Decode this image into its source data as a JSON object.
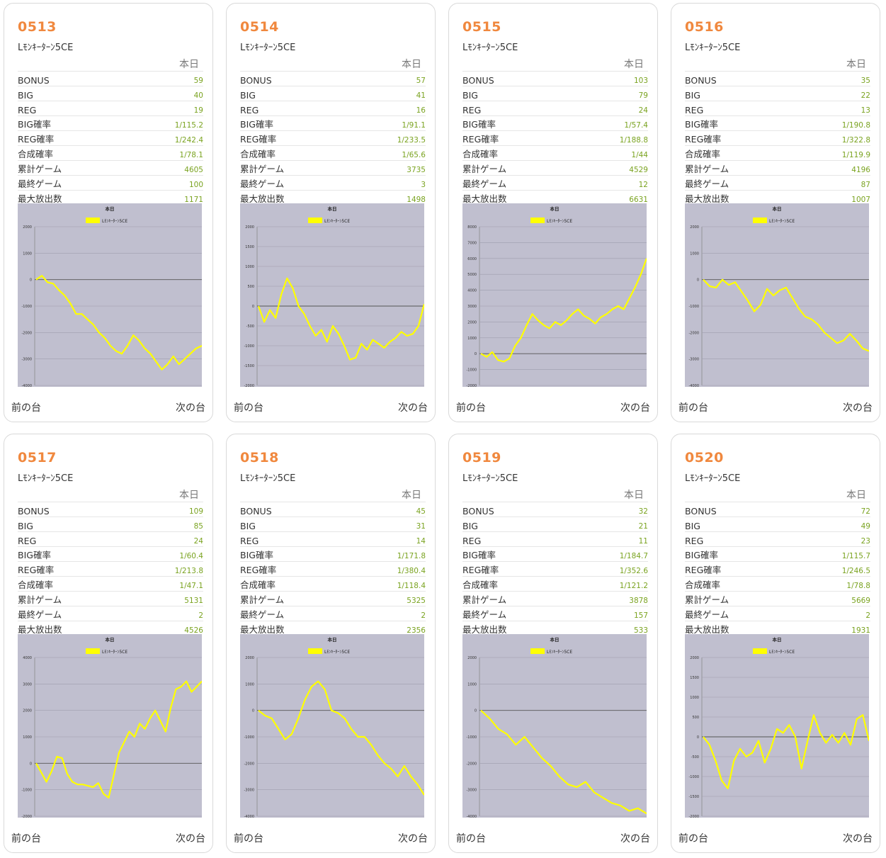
{
  "labels": {
    "today": "本日",
    "prev": "前の台",
    "next": "次の台",
    "rows": [
      "BONUS",
      "BIG",
      "REG",
      "BIG確率",
      "REG確率",
      "合成確率",
      "累計ゲーム",
      "最終ゲーム",
      "最大放出数"
    ]
  },
  "colors": {
    "accent": "#f0883e",
    "value": "#7aa320",
    "chart_bg": "#c0bfcf",
    "line": "#ffff00"
  },
  "machines": [
    {
      "id": "0513",
      "model": "Lﾓﾝｷｰﾀｰﾝ5CE",
      "stats": [
        "59",
        "40",
        "19",
        "1/115.2",
        "1/242.4",
        "1/78.1",
        "4605",
        "100",
        "1171"
      ],
      "chart_data": {
        "type": "line",
        "title": "本日",
        "legend": "Lﾓﾝｷｰﾀｰﾝ5CE",
        "ylim": [
          -4000,
          2000
        ],
        "yticks": [
          2000,
          1000,
          0,
          -1000,
          -2000,
          -3000,
          -4000
        ],
        "values": [
          0,
          150,
          -100,
          -150,
          -400,
          -600,
          -900,
          -1300,
          -1300,
          -1500,
          -1700,
          -2000,
          -2200,
          -2500,
          -2700,
          -2800,
          -2500,
          -2100,
          -2300,
          -2600,
          -2800,
          -3100,
          -3400,
          -3200,
          -2900,
          -3200,
          -3000,
          -2800,
          -2600,
          -2500
        ]
      }
    },
    {
      "id": "0514",
      "model": "Lﾓﾝｷｰﾀｰﾝ5CE",
      "stats": [
        "57",
        "41",
        "16",
        "1/91.1",
        "1/233.5",
        "1/65.6",
        "3735",
        "3",
        "1498"
      ],
      "chart_data": {
        "type": "line",
        "title": "本日",
        "legend": "Lﾓﾝｷｰﾀｰﾝ5CE",
        "ylim": [
          -2000,
          2000
        ],
        "yticks": [
          2000,
          1500,
          1000,
          500,
          0,
          -500,
          -1000,
          -1500,
          -2000
        ],
        "values": [
          0,
          -400,
          -100,
          -300,
          300,
          700,
          450,
          0,
          -200,
          -500,
          -750,
          -600,
          -900,
          -500,
          -700,
          -1000,
          -1350,
          -1300,
          -950,
          -1100,
          -850,
          -950,
          -1050,
          -900,
          -800,
          -650,
          -750,
          -700,
          -500,
          50
        ]
      }
    },
    {
      "id": "0515",
      "model": "Lﾓﾝｷｰﾀｰﾝ5CE",
      "stats": [
        "103",
        "79",
        "24",
        "1/57.4",
        "1/188.8",
        "1/44",
        "4529",
        "12",
        "6631"
      ],
      "chart_data": {
        "type": "line",
        "title": "本日",
        "legend": "Lﾓﾝｷｰﾀｰﾝ5CE",
        "ylim": [
          -2000,
          8000
        ],
        "yticks": [
          8000,
          7000,
          6000,
          5000,
          4000,
          3000,
          2000,
          1000,
          0,
          -1000,
          -2000
        ],
        "values": [
          0,
          -200,
          100,
          -400,
          -500,
          -300,
          500,
          1000,
          1800,
          2500,
          2100,
          1800,
          1600,
          2000,
          1800,
          2100,
          2500,
          2800,
          2400,
          2200,
          1900,
          2300,
          2500,
          2800,
          3000,
          2800,
          3500,
          4200,
          5000,
          6000
        ]
      }
    },
    {
      "id": "0516",
      "model": "Lﾓﾝｷｰﾀｰﾝ5CE",
      "stats": [
        "35",
        "22",
        "13",
        "1/190.8",
        "1/322.8",
        "1/119.9",
        "4196",
        "87",
        "1007"
      ],
      "chart_data": {
        "type": "line",
        "title": "本日",
        "legend": "Lﾓﾝｷｰﾀｰﾝ5CE",
        "ylim": [
          -4000,
          2000
        ],
        "yticks": [
          2000,
          1000,
          0,
          -1000,
          -2000,
          -3000,
          -4000
        ],
        "values": [
          0,
          -250,
          -300,
          0,
          -200,
          -100,
          -450,
          -800,
          -1200,
          -950,
          -350,
          -600,
          -400,
          -300,
          -700,
          -1100,
          -1400,
          -1500,
          -1700,
          -2000,
          -2200,
          -2400,
          -2300,
          -2050,
          -2300,
          -2600,
          -2700
        ]
      }
    },
    {
      "id": "0517",
      "model": "Lﾓﾝｷｰﾀｰﾝ5CE",
      "stats": [
        "109",
        "85",
        "24",
        "1/60.4",
        "1/213.8",
        "1/47.1",
        "5131",
        "2",
        "4526"
      ],
      "chart_data": {
        "type": "line",
        "title": "本日",
        "legend": "Lﾓﾝｷｰﾀｰﾝ5CE",
        "ylim": [
          -2000,
          4000
        ],
        "yticks": [
          4000,
          3000,
          2000,
          1000,
          0,
          -1000,
          -2000
        ],
        "values": [
          0,
          -350,
          -700,
          -300,
          250,
          200,
          -400,
          -700,
          -800,
          -800,
          -850,
          -900,
          -750,
          -1150,
          -1300,
          -450,
          400,
          800,
          1200,
          1000,
          1500,
          1300,
          1700,
          2000,
          1600,
          1200,
          2100,
          2800,
          2900,
          3100,
          2700,
          2900,
          3100
        ]
      }
    },
    {
      "id": "0518",
      "model": "Lﾓﾝｷｰﾀｰﾝ5CE",
      "stats": [
        "45",
        "31",
        "14",
        "1/171.8",
        "1/380.4",
        "1/118.4",
        "5325",
        "2",
        "2356"
      ],
      "chart_data": {
        "type": "line",
        "title": "本日",
        "legend": "Lﾓﾝｷｰﾀｰﾝ5CE",
        "ylim": [
          -4000,
          2000
        ],
        "yticks": [
          2000,
          1000,
          0,
          -1000,
          -2000,
          -3000,
          -4000
        ],
        "values": [
          0,
          -200,
          -300,
          -700,
          -1100,
          -900,
          -300,
          400,
          900,
          1100,
          800,
          0,
          -100,
          -300,
          -700,
          -1000,
          -1000,
          -1300,
          -1700,
          -2000,
          -2200,
          -2500,
          -2100,
          -2500,
          -2800,
          -3200
        ]
      }
    },
    {
      "id": "0519",
      "model": "Lﾓﾝｷｰﾀｰﾝ5CE",
      "stats": [
        "32",
        "21",
        "11",
        "1/184.7",
        "1/352.6",
        "1/121.2",
        "3878",
        "157",
        "533"
      ],
      "chart_data": {
        "type": "line",
        "title": "本日",
        "legend": "Lﾓﾝｷｰﾀｰﾝ5CE",
        "ylim": [
          -4000,
          2000
        ],
        "yticks": [
          2000,
          1000,
          0,
          -1000,
          -2000,
          -3000,
          -4000
        ],
        "values": [
          0,
          -300,
          -700,
          -900,
          -1300,
          -1000,
          -1400,
          -1800,
          -2100,
          -2500,
          -2800,
          -2900,
          -2700,
          -3100,
          -3300,
          -3500,
          -3600,
          -3800,
          -3700,
          -3900
        ]
      }
    },
    {
      "id": "0520",
      "model": "Lﾓﾝｷｰﾀｰﾝ5CE",
      "stats": [
        "72",
        "49",
        "23",
        "1/115.7",
        "1/246.5",
        "1/78.8",
        "5669",
        "2",
        "1931"
      ],
      "chart_data": {
        "type": "line",
        "title": "本日",
        "legend": "Lﾓﾝｷｰﾀｰﾝ5CE",
        "ylim": [
          -2000,
          2000
        ],
        "yticks": [
          2000,
          1500,
          1000,
          500,
          0,
          -500,
          -1000,
          -1500,
          -2000
        ],
        "values": [
          0,
          -200,
          -600,
          -1100,
          -1300,
          -600,
          -300,
          -500,
          -400,
          -100,
          -650,
          -300,
          200,
          100,
          300,
          0,
          -800,
          -100,
          550,
          100,
          -150,
          50,
          -150,
          100,
          -200,
          450,
          550,
          -100
        ]
      }
    }
  ]
}
